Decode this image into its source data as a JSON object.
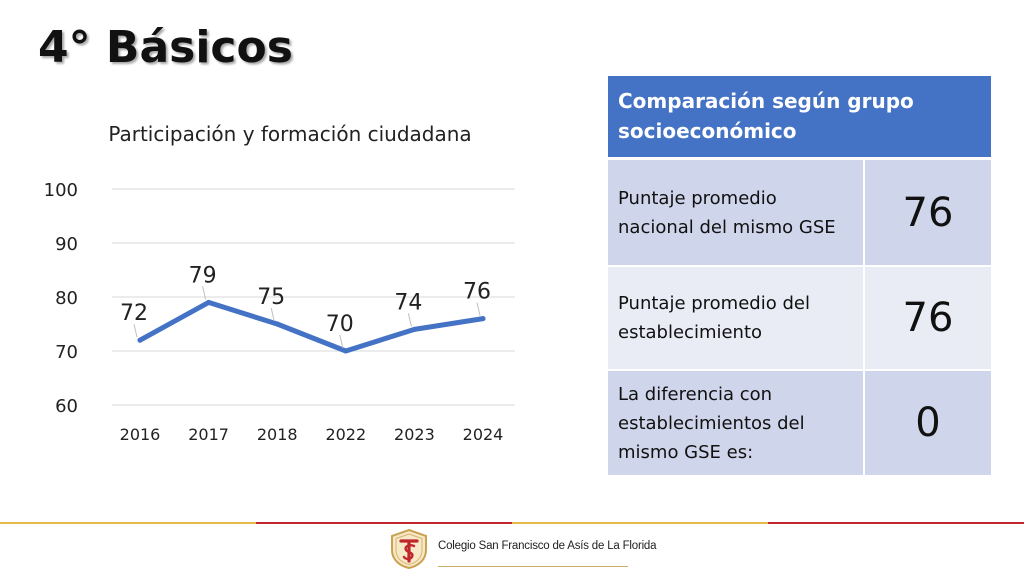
{
  "slide": {
    "title": "4° Básicos"
  },
  "chart_data": {
    "type": "line",
    "title": "Participación y formación ciudadana",
    "categories": [
      "2016",
      "2017",
      "2018",
      "2022",
      "2023",
      "2024"
    ],
    "values": [
      72,
      79,
      75,
      70,
      74,
      76
    ],
    "yticks": [
      "100",
      "90",
      "80",
      "70",
      "60"
    ],
    "ylim": [
      60,
      100
    ],
    "grid": true,
    "line_color": "#4472c4"
  },
  "comparison": {
    "header": "Comparación según grupo socioeconómico",
    "rows": [
      {
        "label": "Puntaje promedio nacional del mismo GSE",
        "value": "76"
      },
      {
        "label": "Puntaje promedio del establecimiento",
        "value": "76"
      },
      {
        "label": "La diferencia con establecimientos del mismo GSE es:",
        "value": "0"
      }
    ],
    "header_color": "#4472c4"
  },
  "footer": {
    "school_name": "Colegio San Francisco de Asís de La Florida"
  }
}
